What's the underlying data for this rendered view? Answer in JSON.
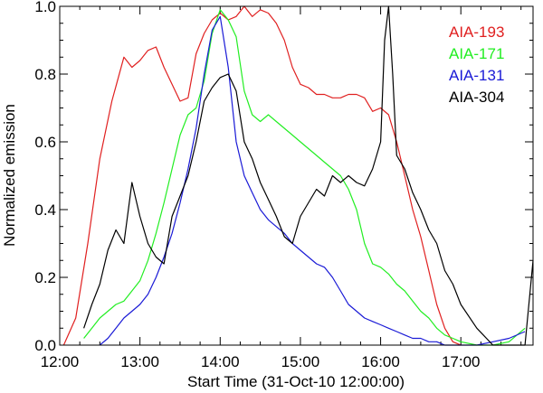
{
  "chart_data": {
    "type": "line",
    "title": "",
    "xlabel": "Start Time (31-Oct-10 12:00:00)",
    "ylabel": "Normalized emission",
    "xlim": [
      0,
      5.9
    ],
    "ylim": [
      0,
      1.0
    ],
    "xticks": [
      {
        "value": 0,
        "label": "12:00"
      },
      {
        "value": 1,
        "label": "13:00"
      },
      {
        "value": 2,
        "label": "14:00"
      },
      {
        "value": 3,
        "label": "15:00"
      },
      {
        "value": 4,
        "label": "16:00"
      },
      {
        "value": 5,
        "label": "17:00"
      }
    ],
    "yticks": [
      {
        "value": 0.0,
        "label": "0.0"
      },
      {
        "value": 0.2,
        "label": "0.2"
      },
      {
        "value": 0.4,
        "label": "0.4"
      },
      {
        "value": 0.6,
        "label": "0.6"
      },
      {
        "value": 0.8,
        "label": "0.8"
      },
      {
        "value": 1.0,
        "label": "1.0"
      }
    ],
    "legend_position": "top-right",
    "series": [
      {
        "name": "AIA-193",
        "color": "#e02020",
        "x": [
          0.05,
          0.2,
          0.35,
          0.5,
          0.65,
          0.8,
          0.9,
          1.0,
          1.1,
          1.2,
          1.3,
          1.4,
          1.5,
          1.6,
          1.7,
          1.8,
          1.9,
          2.0,
          2.1,
          2.2,
          2.3,
          2.4,
          2.5,
          2.6,
          2.7,
          2.8,
          2.9,
          3.0,
          3.1,
          3.2,
          3.3,
          3.4,
          3.5,
          3.6,
          3.7,
          3.8,
          3.9,
          4.0,
          4.1,
          4.2,
          4.3,
          4.4,
          4.5,
          4.6,
          4.7,
          4.8,
          4.9,
          5.0
        ],
        "y": [
          0.0,
          0.08,
          0.3,
          0.55,
          0.72,
          0.85,
          0.82,
          0.84,
          0.87,
          0.88,
          0.82,
          0.77,
          0.72,
          0.73,
          0.86,
          0.92,
          0.96,
          0.98,
          0.96,
          0.97,
          1.0,
          0.97,
          0.99,
          0.98,
          0.95,
          0.9,
          0.82,
          0.77,
          0.76,
          0.74,
          0.74,
          0.73,
          0.73,
          0.74,
          0.74,
          0.73,
          0.69,
          0.7,
          0.68,
          0.6,
          0.5,
          0.4,
          0.32,
          0.22,
          0.12,
          0.05,
          0.01,
          0.0
        ]
      },
      {
        "name": "AIA-171",
        "color": "#22ee22",
        "x": [
          0.3,
          0.4,
          0.5,
          0.6,
          0.7,
          0.8,
          0.9,
          1.0,
          1.1,
          1.2,
          1.3,
          1.4,
          1.5,
          1.6,
          1.7,
          1.8,
          1.9,
          2.0,
          2.1,
          2.2,
          2.3,
          2.4,
          2.5,
          2.6,
          2.7,
          2.8,
          2.9,
          3.0,
          3.1,
          3.2,
          3.3,
          3.4,
          3.5,
          3.6,
          3.7,
          3.8,
          3.9,
          4.0,
          4.1,
          4.2,
          4.3,
          4.4,
          4.5,
          4.6,
          4.7,
          4.8,
          4.9,
          5.0,
          5.2,
          5.4,
          5.6,
          5.8
        ],
        "y": [
          0.02,
          0.05,
          0.08,
          0.1,
          0.12,
          0.13,
          0.16,
          0.19,
          0.25,
          0.33,
          0.42,
          0.52,
          0.62,
          0.68,
          0.7,
          0.78,
          0.92,
          0.99,
          0.96,
          0.91,
          0.75,
          0.68,
          0.66,
          0.68,
          0.66,
          0.64,
          0.62,
          0.6,
          0.58,
          0.56,
          0.54,
          0.52,
          0.5,
          0.46,
          0.4,
          0.3,
          0.24,
          0.23,
          0.21,
          0.18,
          0.16,
          0.13,
          0.1,
          0.08,
          0.05,
          0.03,
          0.02,
          0.01,
          0.0,
          0.0,
          0.01,
          0.05
        ]
      },
      {
        "name": "AIA-131",
        "color": "#1a1ad6",
        "x": [
          0.5,
          0.6,
          0.7,
          0.8,
          0.9,
          1.0,
          1.1,
          1.2,
          1.3,
          1.4,
          1.5,
          1.6,
          1.7,
          1.8,
          1.9,
          2.0,
          2.1,
          2.2,
          2.3,
          2.4,
          2.5,
          2.6,
          2.7,
          2.8,
          2.9,
          3.0,
          3.1,
          3.2,
          3.3,
          3.4,
          3.5,
          3.6,
          3.7,
          3.8,
          3.9,
          4.0,
          4.1,
          4.2,
          4.3,
          4.4,
          4.5,
          4.6,
          4.7,
          4.8,
          4.9,
          5.0,
          5.2,
          5.4,
          5.6,
          5.8
        ],
        "y": [
          0.0,
          0.02,
          0.05,
          0.08,
          0.1,
          0.12,
          0.15,
          0.2,
          0.26,
          0.33,
          0.42,
          0.52,
          0.64,
          0.8,
          0.93,
          0.97,
          0.82,
          0.6,
          0.5,
          0.45,
          0.4,
          0.37,
          0.35,
          0.33,
          0.3,
          0.28,
          0.26,
          0.24,
          0.23,
          0.2,
          0.16,
          0.12,
          0.1,
          0.08,
          0.07,
          0.06,
          0.05,
          0.04,
          0.03,
          0.02,
          0.02,
          0.01,
          0.01,
          0.0,
          0.0,
          0.0,
          0.0,
          0.01,
          0.02,
          0.04
        ]
      },
      {
        "name": "AIA-304",
        "color": "#000000",
        "x": [
          0.3,
          0.4,
          0.5,
          0.6,
          0.7,
          0.8,
          0.9,
          1.0,
          1.1,
          1.2,
          1.3,
          1.4,
          1.5,
          1.6,
          1.7,
          1.8,
          1.9,
          2.0,
          2.1,
          2.2,
          2.3,
          2.4,
          2.5,
          2.6,
          2.7,
          2.8,
          2.9,
          3.0,
          3.1,
          3.2,
          3.3,
          3.4,
          3.5,
          3.6,
          3.7,
          3.8,
          3.9,
          4.0,
          4.05,
          4.1,
          4.15,
          4.2,
          4.3,
          4.4,
          4.5,
          4.6,
          4.7,
          4.8,
          4.9,
          5.0,
          5.2,
          5.4,
          5.6,
          5.8,
          5.9
        ],
        "y": [
          0.05,
          0.12,
          0.18,
          0.28,
          0.34,
          0.3,
          0.48,
          0.38,
          0.3,
          0.26,
          0.24,
          0.38,
          0.44,
          0.5,
          0.6,
          0.72,
          0.76,
          0.79,
          0.8,
          0.75,
          0.6,
          0.55,
          0.48,
          0.43,
          0.38,
          0.32,
          0.3,
          0.38,
          0.42,
          0.46,
          0.44,
          0.5,
          0.48,
          0.5,
          0.48,
          0.47,
          0.52,
          0.6,
          0.9,
          1.0,
          0.8,
          0.56,
          0.52,
          0.45,
          0.4,
          0.34,
          0.3,
          0.22,
          0.18,
          0.12,
          0.05,
          0.0,
          0.0,
          0.0,
          0.25
        ]
      }
    ]
  }
}
